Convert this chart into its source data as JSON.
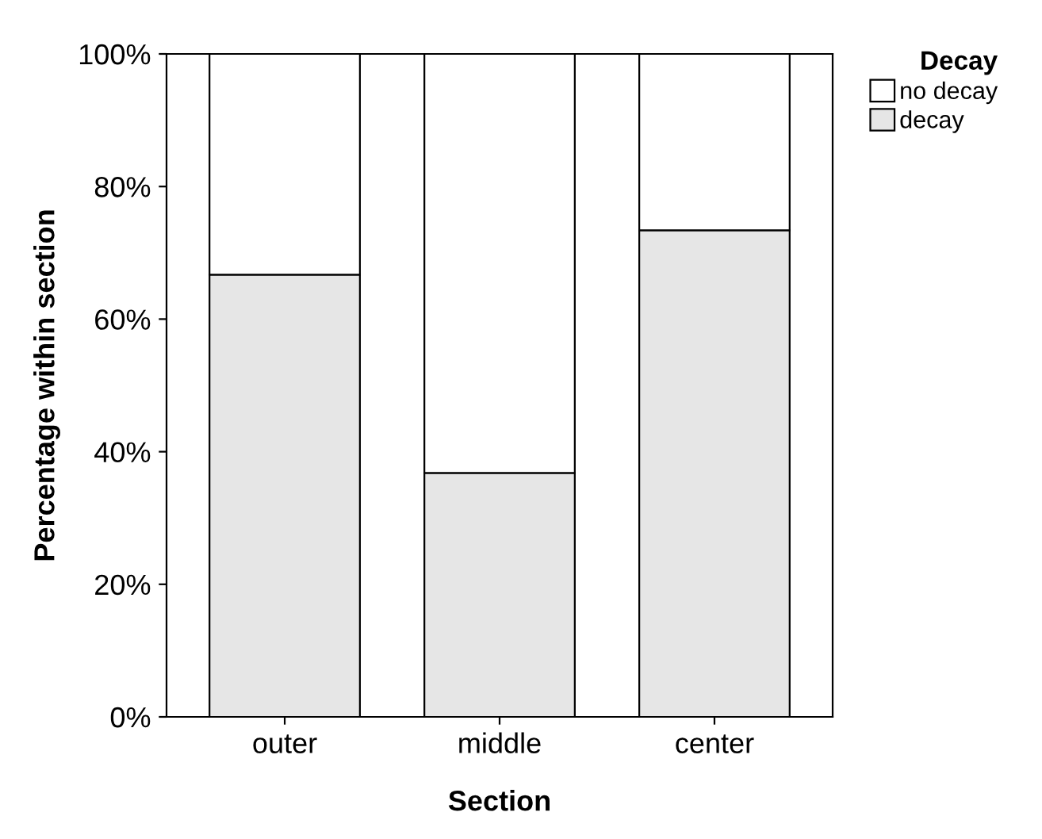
{
  "chart_data": {
    "type": "bar",
    "stacked": true,
    "xlabel": "Section",
    "ylabel": "Percentage within section",
    "legend_title": "Decay",
    "legend": "top right",
    "categories": [
      "outer",
      "middle",
      "center"
    ],
    "series": [
      {
        "name": "decay",
        "color": "#e6e6e6",
        "values": [
          66.7,
          36.8,
          73.4
        ]
      },
      {
        "name": "no decay",
        "color": "#ffffff",
        "values": [
          33.3,
          63.2,
          26.6
        ]
      }
    ],
    "ylim": [
      0,
      100
    ],
    "yticks": [
      {
        "value": 0,
        "label": "0%"
      },
      {
        "value": 20,
        "label": "20%"
      },
      {
        "value": 40,
        "label": "40%"
      },
      {
        "value": 60,
        "label": "60%"
      },
      {
        "value": 80,
        "label": "80%"
      },
      {
        "value": 100,
        "label": "100%"
      }
    ],
    "grid": false
  }
}
